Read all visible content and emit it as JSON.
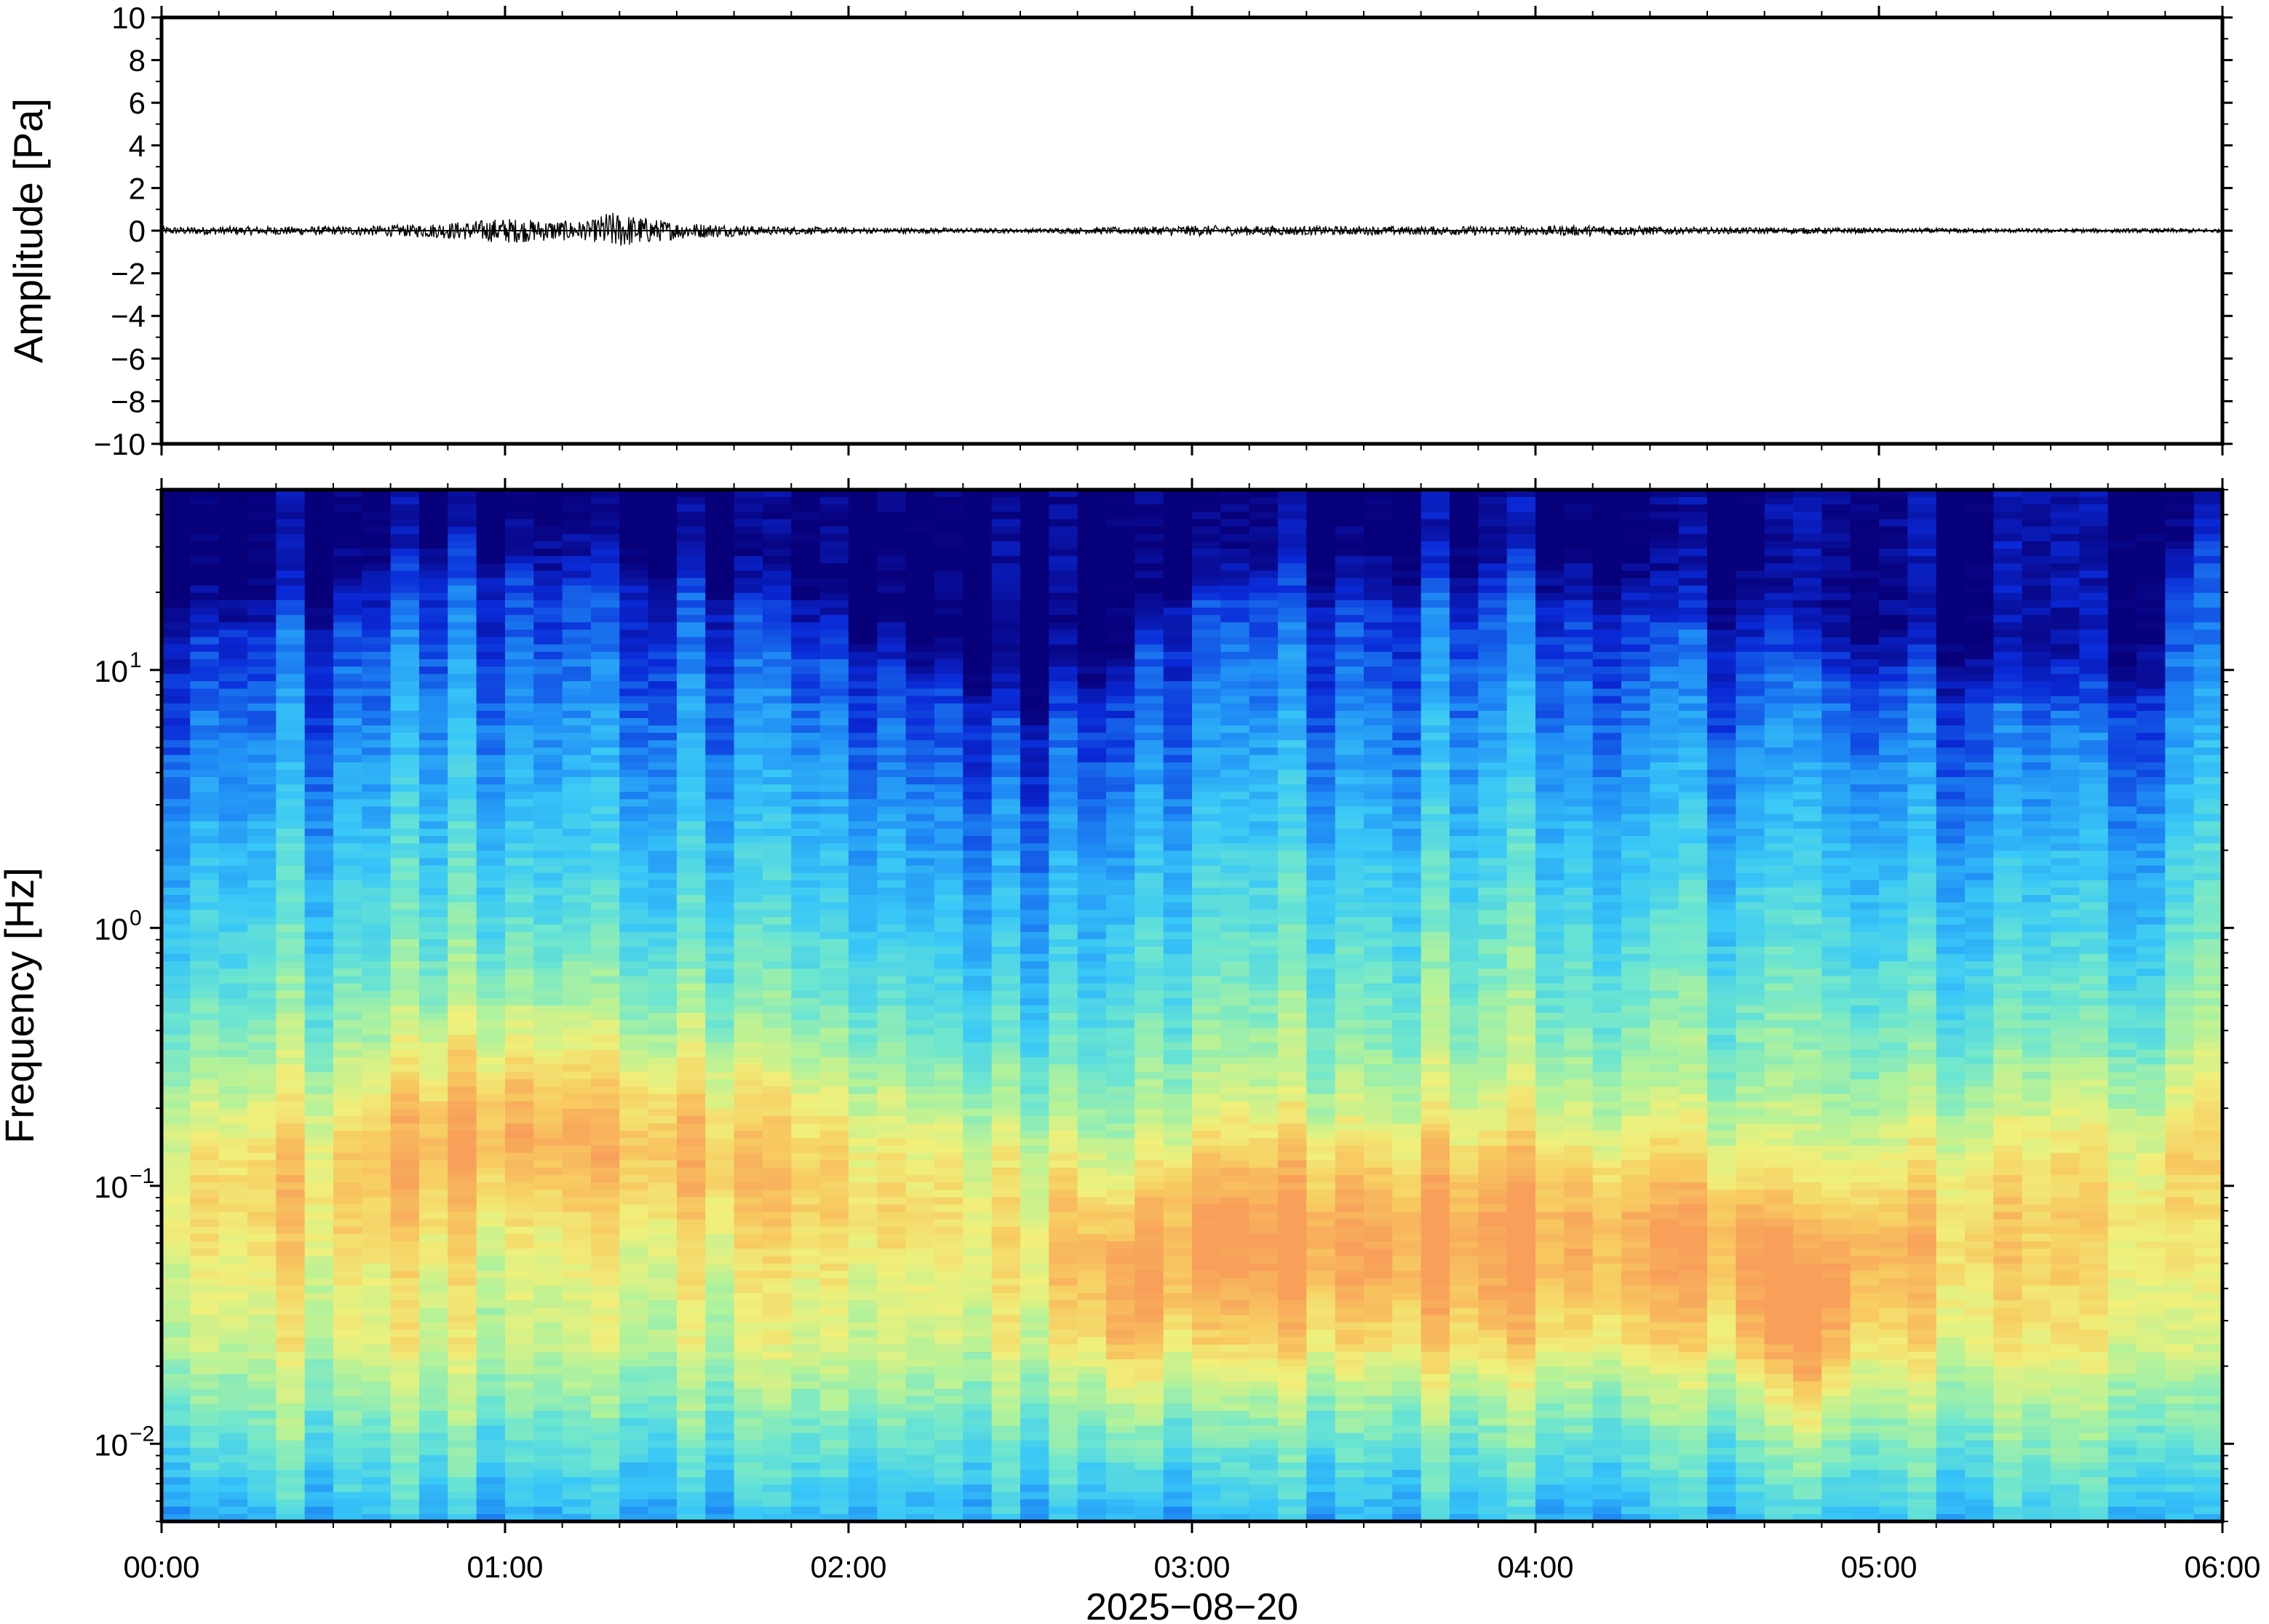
{
  "chart_data": [
    {
      "type": "line",
      "ylabel": "Amplitude [Pa]",
      "ylim": [
        -10,
        10
      ],
      "yticks": [
        {
          "value": 10,
          "label": "10"
        },
        {
          "value": 8,
          "label": "8"
        },
        {
          "value": 6,
          "label": "6"
        },
        {
          "value": 4,
          "label": "4"
        },
        {
          "value": 2,
          "label": "2"
        },
        {
          "value": 0,
          "label": "0"
        },
        {
          "value": -2,
          "label": "−2"
        },
        {
          "value": -4,
          "label": "−4"
        },
        {
          "value": -6,
          "label": "−6"
        },
        {
          "value": -8,
          "label": "−8"
        },
        {
          "value": -10,
          "label": "−10"
        }
      ],
      "x_range_hours": [
        0,
        6
      ],
      "series": [
        {
          "color": "#000000",
          "envelope_hours": [
            0,
            0.25,
            0.5,
            0.75,
            0.9,
            1.0,
            1.1,
            1.25,
            1.3,
            1.5,
            1.75,
            2.0,
            2.5,
            2.9,
            3.0,
            3.25,
            3.5,
            4.0,
            4.2,
            4.5,
            4.8,
            5.0,
            5.5,
            6.0
          ],
          "envelope_pa": [
            0.18,
            0.2,
            0.2,
            0.3,
            0.45,
            0.6,
            0.5,
            0.45,
            0.9,
            0.4,
            0.2,
            0.15,
            0.1,
            0.2,
            0.25,
            0.22,
            0.2,
            0.22,
            0.25,
            0.15,
            0.15,
            0.12,
            0.1,
            0.1
          ]
        }
      ]
    },
    {
      "type": "heatmap",
      "title": "",
      "xlabel": "2025−08−20",
      "ylabel": "Frequency [Hz]",
      "y_scale": "log",
      "ylim": [
        0.005,
        50
      ],
      "yticks": [
        {
          "value": 10,
          "base": "10",
          "exp": "1"
        },
        {
          "value": 1,
          "base": "10",
          "exp": "0"
        },
        {
          "value": 0.1,
          "base": "10",
          "exp": "−1"
        },
        {
          "value": 0.01,
          "base": "10",
          "exp": "−2"
        }
      ],
      "xticks": [
        {
          "hour": 0,
          "label": "00:00"
        },
        {
          "hour": 1,
          "label": "01:00"
        },
        {
          "hour": 2,
          "label": "02:00"
        },
        {
          "hour": 3,
          "label": "03:00"
        },
        {
          "hour": 4,
          "label": "04:00"
        },
        {
          "hour": 5,
          "label": "05:00"
        },
        {
          "hour": 6,
          "label": "06:00"
        }
      ],
      "colormap": [
        "#08007a",
        "#0a2ad8",
        "#1f8cf5",
        "#39c8f7",
        "#6de6d0",
        "#b3f29a",
        "#f0f07a",
        "#f8c860",
        "#f8a05a"
      ],
      "energy_cutoff_hz_by_hour": {
        "hours": [
          0,
          0.5,
          1.0,
          1.5,
          2.0,
          2.5,
          2.8,
          3.0,
          3.5,
          4.0,
          4.5,
          4.8,
          5.0,
          5.5,
          5.8,
          6.0
        ],
        "hz": [
          15,
          14,
          25,
          20,
          12,
          6,
          8,
          20,
          18,
          20,
          14,
          10,
          9,
          7,
          8,
          40
        ]
      },
      "peak_band": {
        "hours": [
          0,
          0.5,
          1.0,
          1.5,
          2.0,
          2.5,
          2.8,
          3.0,
          3.5,
          4.0,
          4.5,
          4.8,
          5.0,
          5.5,
          6.0
        ],
        "center_hz": [
          0.1,
          0.12,
          0.18,
          0.15,
          0.12,
          0.1,
          0.04,
          0.06,
          0.06,
          0.06,
          0.06,
          0.03,
          0.06,
          0.1,
          0.12
        ],
        "strength": [
          0.4,
          0.5,
          0.8,
          0.7,
          0.5,
          0.45,
          0.85,
          0.9,
          0.85,
          0.8,
          0.7,
          0.9,
          0.55,
          0.45,
          0.4
        ]
      }
    }
  ]
}
